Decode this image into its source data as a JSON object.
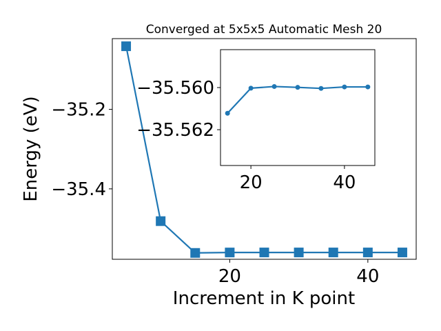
{
  "chart_data": [
    {
      "type": "line",
      "title": "Converged at 5x5x5 Automatic Mesh 20",
      "xlabel": "Increment in K point",
      "ylabel": "Energy (eV)",
      "x": [
        5,
        10,
        15,
        20,
        25,
        30,
        35,
        40,
        45
      ],
      "y": [
        -35.0412,
        -35.4812,
        -35.5612,
        -35.5601,
        -35.56,
        -35.56,
        -35.56,
        -35.56,
        -35.56
      ],
      "xlim": [
        3,
        47
      ],
      "ylim": [
        -35.5772,
        -35.022
      ],
      "xticks": [
        20,
        40
      ],
      "xtick_labels": [
        "20",
        "40"
      ],
      "yticks": [
        -35.2,
        -35.4
      ],
      "ytick_labels": [
        "−35.2",
        "−35.4"
      ],
      "marker": "square",
      "color": "#1f77b4",
      "grid": false,
      "legend": "none"
    },
    {
      "type": "line",
      "inset": true,
      "x": [
        15,
        20,
        25,
        30,
        35,
        40,
        45
      ],
      "y": [
        -35.56122,
        -35.56003,
        -35.55995,
        -35.55999,
        -35.56004,
        -35.55997,
        -35.55997
      ],
      "xlim": [
        13.5,
        46.5
      ],
      "ylim": [
        -35.5637,
        -35.5582
      ],
      "xticks": [
        20,
        40
      ],
      "xtick_labels": [
        "20",
        "40"
      ],
      "yticks": [
        -35.562,
        -35.56
      ],
      "ytick_labels": [
        "−35.562",
        "−35.560"
      ],
      "marker": "circle",
      "color": "#1f77b4",
      "grid": false
    }
  ]
}
